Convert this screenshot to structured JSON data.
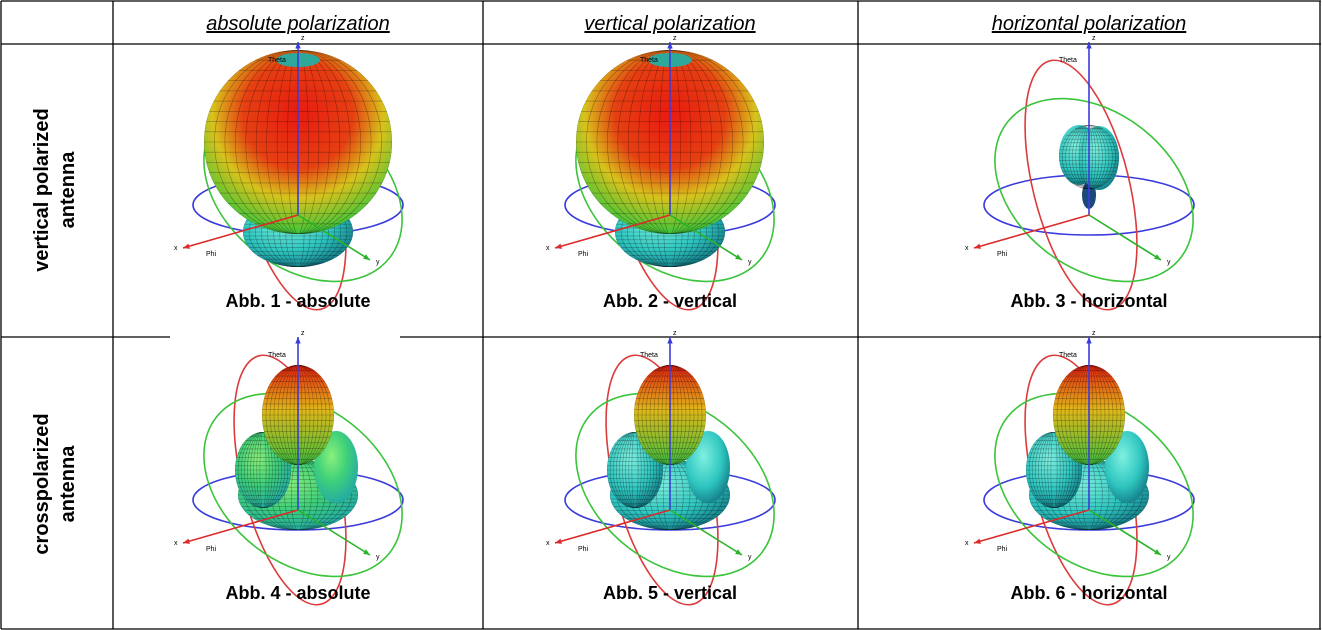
{
  "header": {
    "columns": [
      "absolute polarization",
      "vertical polarization",
      "horizontal polarization"
    ]
  },
  "rows": [
    {
      "label": [
        "vertical polarized",
        "antenna"
      ],
      "captions": [
        "Abb. 1 - absolute",
        "Abb. 2 - vertical",
        "Abb. 3 - horizontal"
      ]
    },
    {
      "label": [
        "crosspolarized",
        "antenna"
      ],
      "captions": [
        "Abb. 4 - absolute",
        "Abb. 5 - vertical",
        "Abb. 6 - horizontal"
      ]
    }
  ],
  "axis_labels": {
    "z": "z",
    "theta": "Theta",
    "x": "x",
    "phi": "Phi",
    "y": "y"
  }
}
